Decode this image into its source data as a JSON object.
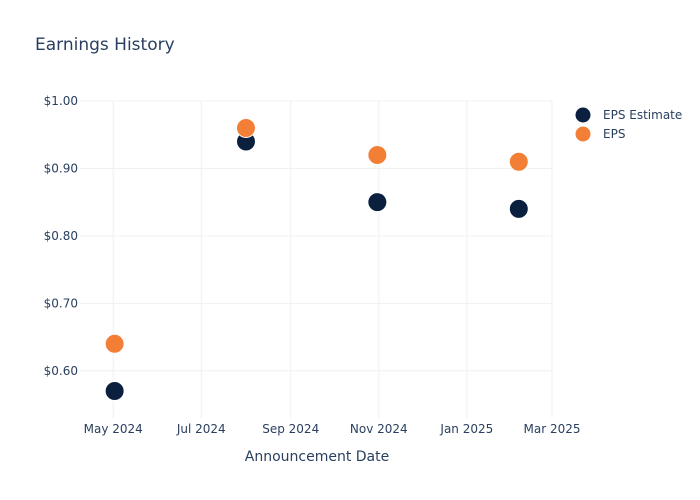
{
  "chart_data": {
    "type": "scatter",
    "title": "Earnings History",
    "xlabel": "Announcement Date",
    "ylabel": "",
    "x_ticks": [
      {
        "date": "2024-05-01",
        "label": "May 2024"
      },
      {
        "date": "2024-07-01",
        "label": "Jul 2024"
      },
      {
        "date": "2024-09-01",
        "label": "Sep 2024"
      },
      {
        "date": "2024-11-01",
        "label": "Nov 2024"
      },
      {
        "date": "2025-01-01",
        "label": "Jan 2025"
      },
      {
        "date": "2025-03-01",
        "label": "Mar 2025"
      }
    ],
    "y_ticks": [
      {
        "value": 0.6,
        "label": "$0.60"
      },
      {
        "value": 0.7,
        "label": "$0.70"
      },
      {
        "value": 0.8,
        "label": "$0.80"
      },
      {
        "value": 0.9,
        "label": "$0.90"
      },
      {
        "value": 1.0,
        "label": "$1.00"
      }
    ],
    "xlim": [
      "2024-04-08",
      "2025-03-01"
    ],
    "ylim": [
      0.53,
      1.0
    ],
    "grid": true,
    "legend_position": "top-right",
    "series": [
      {
        "name": "EPS Estimate",
        "color": "#0b1f3f",
        "x": [
          "2024-05-02",
          "2024-08-01",
          "2024-10-31",
          "2025-02-06"
        ],
        "y": [
          0.57,
          0.94,
          0.85,
          0.84
        ]
      },
      {
        "name": "EPS",
        "color": "#f37f36",
        "x": [
          "2024-05-02",
          "2024-08-01",
          "2024-10-31",
          "2025-02-06"
        ],
        "y": [
          0.64,
          0.96,
          0.92,
          0.91
        ]
      }
    ]
  }
}
